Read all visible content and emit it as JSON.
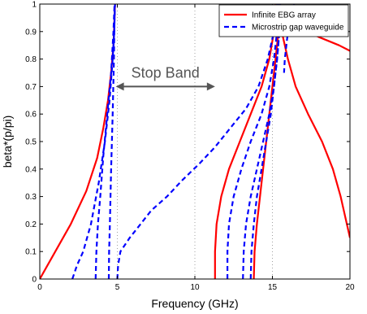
{
  "chart_data": {
    "type": "line",
    "title": "",
    "xlabel": "Frequency (GHz)",
    "ylabel": "beta*(p/pi)",
    "xlim": [
      0,
      20
    ],
    "ylim": [
      0,
      1
    ],
    "xticks": [
      "0",
      "5",
      "10",
      "15",
      "20"
    ],
    "yticks": [
      "0",
      "0.1",
      "0.2",
      "0.3",
      "0.4",
      "0.5",
      "0.6",
      "0.7",
      "0.8",
      "0.9",
      "1"
    ],
    "grid": "vertical dotted at x ticks",
    "legend_position": "top-right",
    "annotation": {
      "text": "Stop Band",
      "arrow_from": [
        4.9,
        0.7
      ],
      "arrow_to": [
        11.3,
        0.7
      ]
    },
    "series": [
      {
        "name": "Infinite EBG array",
        "color": "#ff0000",
        "style": "solid",
        "curves": [
          [
            [
              0,
              0
            ],
            [
              1.0,
              0.1
            ],
            [
              2.0,
              0.2
            ],
            [
              3.0,
              0.32
            ],
            [
              3.7,
              0.44
            ],
            [
              4.1,
              0.55
            ],
            [
              4.4,
              0.65
            ],
            [
              4.6,
              0.75
            ],
            [
              4.75,
              0.85
            ],
            [
              4.82,
              0.95
            ],
            [
              4.85,
              1.0
            ]
          ],
          [
            [
              11.3,
              0
            ],
            [
              11.3,
              0.1
            ],
            [
              11.4,
              0.2
            ],
            [
              11.7,
              0.3
            ],
            [
              12.2,
              0.4
            ],
            [
              12.9,
              0.5
            ],
            [
              13.6,
              0.6
            ],
            [
              14.3,
              0.7
            ],
            [
              14.8,
              0.8
            ],
            [
              15.1,
              0.9
            ],
            [
              15.3,
              1.0
            ]
          ],
          [
            [
              13.8,
              0
            ],
            [
              13.85,
              0.1
            ],
            [
              14.0,
              0.2
            ],
            [
              14.2,
              0.3
            ],
            [
              14.4,
              0.4
            ],
            [
              14.6,
              0.5
            ],
            [
              14.8,
              0.6
            ],
            [
              15.0,
              0.7
            ],
            [
              15.2,
              0.8
            ],
            [
              15.4,
              0.9
            ],
            [
              15.5,
              1.0
            ]
          ],
          [
            [
              15.2,
              1.0
            ],
            [
              15.6,
              0.9
            ],
            [
              16.0,
              0.8
            ],
            [
              16.5,
              0.7
            ],
            [
              17.3,
              0.6
            ],
            [
              18.2,
              0.5
            ],
            [
              18.9,
              0.4
            ],
            [
              19.4,
              0.3
            ],
            [
              19.8,
              0.2
            ],
            [
              20.0,
              0.15
            ]
          ],
          [
            [
              15.4,
              1.0
            ],
            [
              15.8,
              0.96
            ],
            [
              16.5,
              0.92
            ],
            [
              18.0,
              0.88
            ],
            [
              19.3,
              0.85
            ],
            [
              20.0,
              0.83
            ]
          ]
        ]
      },
      {
        "name": "Microstrip gap waveguide",
        "color": "#0000ff",
        "style": "dashed",
        "curves": [
          [
            [
              2.1,
              0
            ],
            [
              2.4,
              0.05
            ],
            [
              2.8,
              0.1
            ],
            [
              3.3,
              0.2
            ],
            [
              3.8,
              0.35
            ],
            [
              4.2,
              0.5
            ],
            [
              4.5,
              0.65
            ],
            [
              4.7,
              0.8
            ],
            [
              4.8,
              0.9
            ],
            [
              4.85,
              1.0
            ]
          ],
          [
            [
              3.6,
              0
            ],
            [
              3.65,
              0.1
            ],
            [
              3.75,
              0.2
            ],
            [
              3.9,
              0.3
            ],
            [
              4.1,
              0.45
            ],
            [
              4.35,
              0.6
            ],
            [
              4.6,
              0.75
            ],
            [
              4.75,
              0.9
            ],
            [
              4.82,
              1.0
            ]
          ],
          [
            [
              4.45,
              0
            ],
            [
              4.47,
              0.1
            ],
            [
              4.52,
              0.2
            ],
            [
              4.6,
              0.4
            ],
            [
              4.7,
              0.6
            ],
            [
              4.78,
              0.8
            ],
            [
              4.83,
              1.0
            ]
          ],
          [
            [
              5.0,
              0
            ],
            [
              5.05,
              0.05
            ],
            [
              5.2,
              0.1
            ],
            [
              5.8,
              0.15
            ],
            [
              6.5,
              0.2
            ],
            [
              7.2,
              0.25
            ],
            [
              8.2,
              0.3
            ],
            [
              9.2,
              0.36
            ],
            [
              10.3,
              0.42
            ],
            [
              11.3,
              0.48
            ],
            [
              12.3,
              0.55
            ],
            [
              13.3,
              0.62
            ],
            [
              14.1,
              0.7
            ],
            [
              14.7,
              0.8
            ],
            [
              15.1,
              0.9
            ],
            [
              15.3,
              1.0
            ]
          ],
          [
            [
              12.1,
              0
            ],
            [
              12.1,
              0.1
            ],
            [
              12.2,
              0.2
            ],
            [
              12.5,
              0.3
            ],
            [
              13.0,
              0.4
            ],
            [
              13.6,
              0.5
            ],
            [
              14.3,
              0.6
            ],
            [
              14.8,
              0.7
            ],
            [
              15.1,
              0.8
            ],
            [
              15.3,
              0.9
            ],
            [
              15.4,
              1.0
            ]
          ],
          [
            [
              13.1,
              0
            ],
            [
              13.15,
              0.1
            ],
            [
              13.3,
              0.2
            ],
            [
              13.6,
              0.3
            ],
            [
              14.0,
              0.4
            ],
            [
              14.4,
              0.5
            ],
            [
              14.8,
              0.6
            ],
            [
              15.1,
              0.7
            ],
            [
              15.3,
              0.8
            ],
            [
              15.45,
              0.9
            ],
            [
              15.5,
              1.0
            ]
          ],
          [
            [
              13.6,
              0
            ],
            [
              13.65,
              0.1
            ],
            [
              13.8,
              0.2
            ],
            [
              14.0,
              0.3
            ],
            [
              14.3,
              0.4
            ],
            [
              14.6,
              0.5
            ],
            [
              14.9,
              0.6
            ],
            [
              15.1,
              0.7
            ],
            [
              15.3,
              0.8
            ],
            [
              15.45,
              0.9
            ],
            [
              15.55,
              1.0
            ]
          ],
          [
            [
              16.4,
              1.0
            ],
            [
              16.2,
              0.95
            ],
            [
              16.0,
              0.9
            ],
            [
              15.9,
              0.85
            ],
            [
              15.8,
              0.8
            ],
            [
              15.75,
              0.75
            ]
          ]
        ]
      }
    ]
  }
}
